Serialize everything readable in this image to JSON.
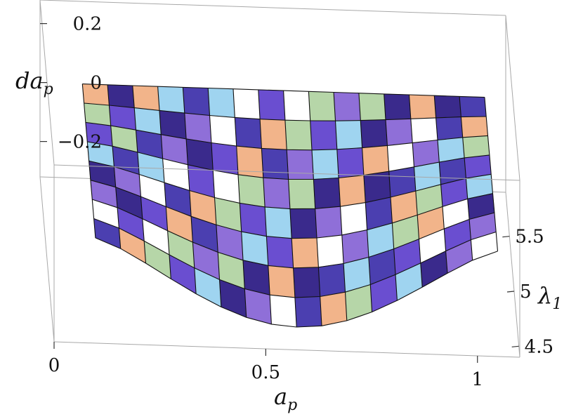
{
  "chart_data": {
    "type": "surface3d",
    "title": "",
    "axes": {
      "x": {
        "label_main": "a",
        "label_sub": "p",
        "range": [
          0,
          1.1
        ],
        "ticks": [
          {
            "value": 0,
            "label": "0"
          },
          {
            "value": 0.5,
            "label": "0.5"
          },
          {
            "value": 1,
            "label": "1"
          }
        ]
      },
      "y": {
        "label_main": "λ",
        "label_sub": "1",
        "range": [
          4.4,
          5.9
        ],
        "ticks": [
          {
            "value": 4.5,
            "label": "4.5"
          },
          {
            "value": 5,
            "label": "5"
          },
          {
            "value": 5.5,
            "label": "5.5"
          }
        ]
      },
      "z": {
        "label_main": "da",
        "label_sub": "p",
        "range": [
          -0.32,
          0.28
        ],
        "ticks": [
          {
            "value": 0.2,
            "label": "0.2"
          },
          {
            "value": 0,
            "label": "0"
          },
          {
            "value": -0.2,
            "label": "−0.2"
          }
        ]
      }
    },
    "surface": {
      "x_range": [
        0.1,
        1.05
      ],
      "y_range": [
        4.5,
        5.9
      ],
      "x_count": 17,
      "y_count": 9,
      "function": "z = -0.28 * sin(pi*(x-0.1)/0.95)^1.3 * (5.9 - y)/1.4",
      "palette": [
        "#4b3fb0",
        "#6a4ed0",
        "#8f6fd8",
        "#f2b48a",
        "#9fd4f0",
        "#ffffff",
        "#b6d6a8",
        "#3a2a8c"
      ]
    },
    "box": true,
    "grid": false,
    "legend": "none"
  }
}
